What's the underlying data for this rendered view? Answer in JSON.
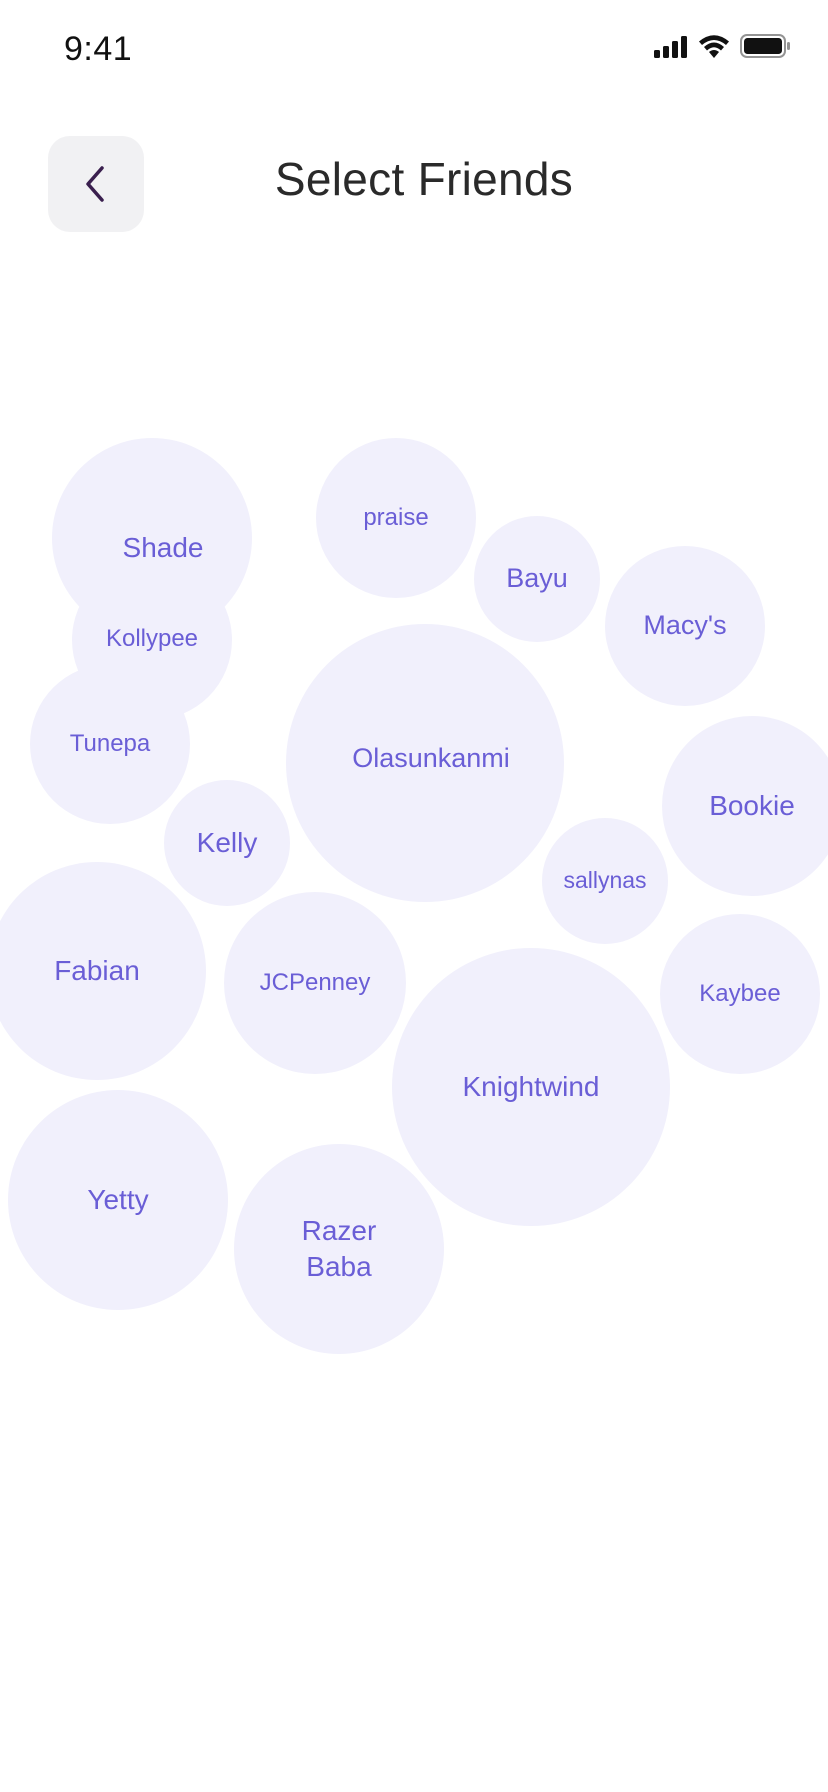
{
  "status_bar": {
    "time": "9:41",
    "icons": [
      "signal-icon",
      "wifi-icon",
      "battery-icon"
    ]
  },
  "header": {
    "back_icon": "chevron-left-icon",
    "title": "Select Friends"
  },
  "colors": {
    "bubble_fill": "#F1F0FC",
    "bubble_text": "#6A5ED6",
    "back_button_bg": "#F1F1F3",
    "back_icon": "#3A1F4E"
  },
  "friends": [
    {
      "name": "Shade"
    },
    {
      "name": "Kollypee"
    },
    {
      "name": "Tunepa"
    },
    {
      "name": "praise"
    },
    {
      "name": "Bayu"
    },
    {
      "name": "Macy's"
    },
    {
      "name": "Olasunkanmi"
    },
    {
      "name": "Bookie"
    },
    {
      "name": "Kelly"
    },
    {
      "name": "sallynas"
    },
    {
      "name": "Fabian"
    },
    {
      "name": "JCPenney"
    },
    {
      "name": "Kaybee"
    },
    {
      "name": "Knightwind"
    },
    {
      "name": "Yetty"
    },
    {
      "name": "Razer Baba"
    }
  ]
}
